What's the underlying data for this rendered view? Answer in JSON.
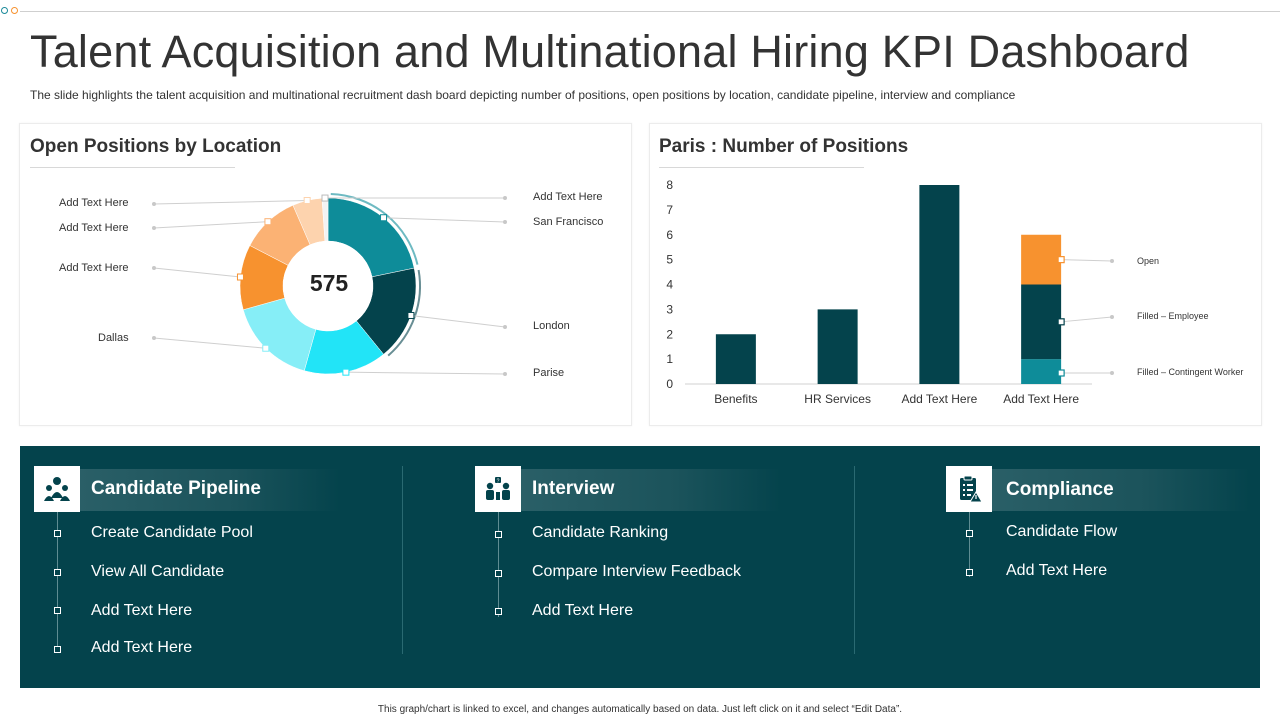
{
  "title": "Talent Acquisition and Multinational Hiring KPI Dashboard",
  "subtitle": "The slide highlights the talent acquisition and  multinational recruitment dash board depicting number of positions, open positions by location, candidate pipeline, interview and compliance",
  "footer": "This graph/chart is linked to excel, and changes automatically based on data. Just left click on it and select “Edit Data”.",
  "colors": {
    "dark_teal": "#04434c",
    "teal": "#0e8c99",
    "cyan": "#22e4f7",
    "light_cyan": "#86eef7",
    "orange": "#f7922f",
    "light_orange": "#fbb274",
    "peach": "#fdd3ae"
  },
  "chart_data": [
    {
      "type": "pie",
      "title": "Open Positions by Location",
      "center_label": "575",
      "slices": [
        {
          "label": "San Francisco",
          "value": 20,
          "color": "#0e8c99"
        },
        {
          "label": "London",
          "value": 16,
          "color": "#04434c"
        },
        {
          "label": "Parise",
          "value": 14,
          "color": "#22e4f7"
        },
        {
          "label": "Dallas",
          "value": 15,
          "color": "#86eef7"
        },
        {
          "label": "Add Text Here",
          "value": 11,
          "color": "#f7922f"
        },
        {
          "label": "Add Text Here",
          "value": 10,
          "color": "#fbb274"
        },
        {
          "label": "Add Text Here",
          "value": 5,
          "color": "#fdd3ae"
        },
        {
          "label": "Add Text Here",
          "value": 1,
          "color": "#f3f3f3"
        }
      ]
    },
    {
      "type": "bar",
      "stacked": true,
      "title": "Paris : Number of Positions",
      "categories": [
        "Benefits",
        "HR Services",
        "Add Text Here",
        "Add Text Here"
      ],
      "ylim": [
        0,
        8
      ],
      "yticks": [
        0,
        1,
        2,
        3,
        4,
        5,
        6,
        7,
        8
      ],
      "series": [
        {
          "name": "Filled – Contingent Worker",
          "values": [
            0,
            0,
            0,
            1
          ],
          "color": "#0e8c99"
        },
        {
          "name": "Filled – Employee",
          "values": [
            2,
            3,
            8,
            3
          ],
          "color": "#04434c"
        },
        {
          "name": "Open",
          "values": [
            0,
            0,
            0,
            2
          ],
          "color": "#f7922f"
        }
      ]
    }
  ],
  "cards": [
    {
      "title": "Candidate Pipeline",
      "icon": "team-icon",
      "items": [
        "Create Candidate Pool",
        "View All Candidate",
        "Add Text Here",
        "Add Text Here"
      ]
    },
    {
      "title": "Interview",
      "icon": "interview-icon",
      "items": [
        "Candidate Ranking",
        "Compare Interview  Feedback",
        "Add Text Here"
      ]
    },
    {
      "title": "Compliance",
      "icon": "clipboard-icon",
      "items": [
        "Candidate Flow",
        "Add Text Here"
      ]
    }
  ]
}
